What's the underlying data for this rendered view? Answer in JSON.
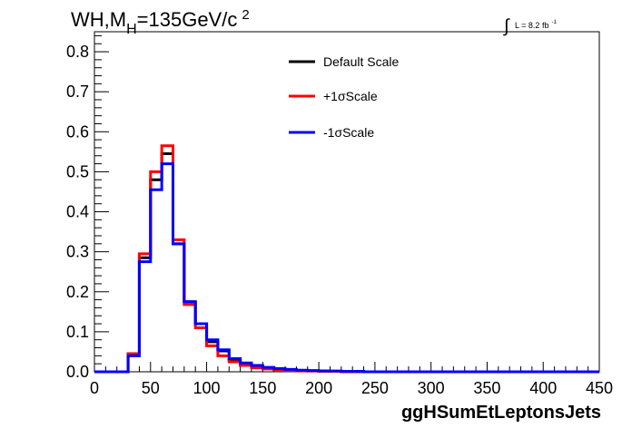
{
  "chart_data": {
    "type": "line",
    "title_main": "WH,M",
    "title_sub": "H",
    "title_rest": "=135GeV/c",
    "title_sup": "2",
    "lumi_symbol": "∫",
    "lumi_text": "L = 8.2 fb",
    "lumi_sup": "-1",
    "xlabel": "ggHSumEtLeptonsJets",
    "ylabel": "",
    "xlim": [
      0,
      450
    ],
    "ylim": [
      0,
      0.85
    ],
    "xticks": [
      "0",
      "50",
      "100",
      "150",
      "200",
      "250",
      "300",
      "350",
      "400",
      "450"
    ],
    "yticks": [
      "0.0",
      "0.1",
      "0.2",
      "0.3",
      "0.4",
      "0.5",
      "0.6",
      "0.7",
      "0.8"
    ],
    "bin_edges": [
      0,
      10,
      20,
      30,
      40,
      50,
      60,
      70,
      80,
      90,
      100,
      110,
      120,
      130,
      140,
      150,
      160,
      170,
      180,
      190,
      200,
      210,
      220,
      230,
      240,
      250,
      260,
      270,
      280,
      290,
      300,
      310,
      320,
      330,
      340,
      350,
      360,
      370,
      380,
      390,
      400,
      410,
      420,
      430,
      440,
      450
    ],
    "series": [
      {
        "name": "Default Scale",
        "color": "#000000",
        "values": [
          0,
          0,
          0,
          0.045,
          0.285,
          0.48,
          0.545,
          0.32,
          0.175,
          0.12,
          0.075,
          0.052,
          0.03,
          0.02,
          0.013,
          0.009,
          0.006,
          0.004,
          0.003,
          0.002,
          0.002,
          0.001,
          0.001,
          0,
          0,
          0,
          0,
          0,
          0,
          0,
          0,
          0,
          0,
          0,
          0,
          0,
          0,
          0,
          0,
          0,
          0,
          0,
          0,
          0,
          0
        ]
      },
      {
        "name": "+1σScale",
        "color": "#ff0000",
        "values": [
          0,
          0,
          0,
          0.045,
          0.295,
          0.5,
          0.565,
          0.33,
          0.168,
          0.11,
          0.065,
          0.04,
          0.025,
          0.016,
          0.01,
          0.007,
          0.005,
          0.003,
          0.002,
          0.002,
          0.001,
          0.001,
          0,
          0,
          0,
          0,
          0,
          0,
          0,
          0,
          0,
          0,
          0,
          0,
          0,
          0,
          0,
          0,
          0,
          0,
          0,
          0,
          0,
          0,
          0
        ]
      },
      {
        "name": "-1σScale",
        "color": "#0000ff",
        "values": [
          0,
          0,
          0,
          0.04,
          0.275,
          0.455,
          0.52,
          0.32,
          0.175,
          0.12,
          0.08,
          0.055,
          0.033,
          0.022,
          0.016,
          0.011,
          0.008,
          0.006,
          0.004,
          0.003,
          0.002,
          0.002,
          0.001,
          0.001,
          0,
          0,
          0,
          0,
          0,
          0,
          0,
          0,
          0,
          0,
          0,
          0,
          0,
          0,
          0,
          0,
          0,
          0,
          0,
          0,
          0
        ]
      }
    ],
    "legend_position": "top-center",
    "grid": false
  }
}
